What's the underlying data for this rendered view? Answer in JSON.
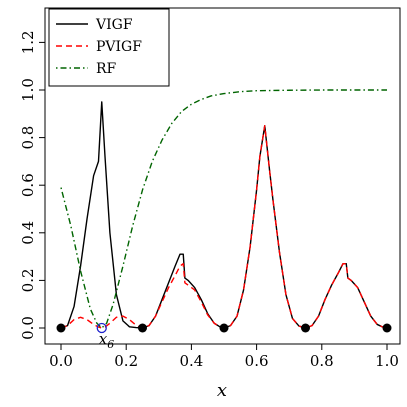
{
  "chart_data": {
    "type": "line",
    "title": "",
    "xlabel": "x",
    "ylabel": "",
    "xlim": [
      0,
      1
    ],
    "ylim": [
      0,
      1.35
    ],
    "x_ticks": [
      "0.0",
      "0.2",
      "0.4",
      "0.6",
      "0.8",
      "1.0"
    ],
    "y_ticks": [
      "0.0",
      "0.2",
      "0.4",
      "0.6",
      "0.8",
      "1.0",
      "1.2"
    ],
    "grid": false,
    "legend_position": "top-left",
    "legend": [
      {
        "label": "VIGF",
        "color": "#000000",
        "style": "solid"
      },
      {
        "label": "PVIGF",
        "color": "#ff0000",
        "style": "dashed"
      },
      {
        "label": "RF",
        "color": "#006400",
        "style": "dotdash"
      }
    ],
    "series": [
      {
        "name": "VIGF",
        "color": "#000000",
        "style": "solid",
        "x": [
          0,
          0.02,
          0.04,
          0.06,
          0.08,
          0.1,
          0.115,
          0.125,
          0.135,
          0.15,
          0.17,
          0.19,
          0.21,
          0.23,
          0.25,
          0.27,
          0.29,
          0.31,
          0.33,
          0.35,
          0.365,
          0.375,
          0.38,
          0.39,
          0.41,
          0.43,
          0.45,
          0.47,
          0.49,
          0.5,
          0.52,
          0.54,
          0.56,
          0.58,
          0.6,
          0.61,
          0.625,
          0.64,
          0.65,
          0.67,
          0.69,
          0.71,
          0.73,
          0.75,
          0.77,
          0.79,
          0.81,
          0.83,
          0.85,
          0.865,
          0.875,
          0.88,
          0.89,
          0.91,
          0.93,
          0.95,
          0.97,
          0.99,
          1.0
        ],
        "y": [
          0,
          0.01,
          0.09,
          0.26,
          0.46,
          0.64,
          0.7,
          0.95,
          0.72,
          0.4,
          0.14,
          0.03,
          0.005,
          0.002,
          0,
          0.01,
          0.05,
          0.12,
          0.19,
          0.26,
          0.31,
          0.31,
          0.21,
          0.2,
          0.17,
          0.12,
          0.06,
          0.02,
          0.003,
          0,
          0.01,
          0.05,
          0.16,
          0.34,
          0.58,
          0.72,
          0.85,
          0.66,
          0.54,
          0.32,
          0.14,
          0.04,
          0.008,
          0,
          0.01,
          0.05,
          0.12,
          0.18,
          0.23,
          0.27,
          0.27,
          0.21,
          0.2,
          0.17,
          0.11,
          0.05,
          0.015,
          0.002,
          0
        ]
      },
      {
        "name": "PVIGF",
        "color": "#ff0000",
        "style": "dashed",
        "x": [
          0,
          0.02,
          0.04,
          0.06,
          0.08,
          0.1,
          0.115,
          0.125,
          0.135,
          0.15,
          0.17,
          0.19,
          0.21,
          0.23,
          0.25,
          0.27,
          0.29,
          0.31,
          0.33,
          0.35,
          0.365,
          0.375,
          0.38,
          0.39,
          0.41,
          0.43,
          0.45,
          0.47,
          0.49,
          0.5,
          0.52,
          0.54,
          0.56,
          0.58,
          0.6,
          0.61,
          0.625,
          0.64,
          0.65,
          0.67,
          0.69,
          0.71,
          0.73,
          0.75,
          0.77,
          0.79,
          0.81,
          0.83,
          0.85,
          0.865,
          0.875,
          0.88,
          0.89,
          0.91,
          0.93,
          0.95,
          0.97,
          0.99,
          1.0
        ],
        "y": [
          0,
          0.01,
          0.035,
          0.045,
          0.035,
          0.015,
          0.004,
          0,
          0.004,
          0.02,
          0.045,
          0.05,
          0.035,
          0.012,
          0,
          0.01,
          0.05,
          0.11,
          0.17,
          0.22,
          0.26,
          0.27,
          0.19,
          0.18,
          0.16,
          0.11,
          0.055,
          0.02,
          0.003,
          0,
          0.01,
          0.05,
          0.16,
          0.34,
          0.58,
          0.72,
          0.85,
          0.66,
          0.54,
          0.32,
          0.14,
          0.04,
          0.008,
          0,
          0.01,
          0.05,
          0.12,
          0.18,
          0.23,
          0.27,
          0.27,
          0.21,
          0.2,
          0.17,
          0.11,
          0.05,
          0.015,
          0.002,
          0
        ]
      },
      {
        "name": "RF",
        "color": "#006400",
        "style": "dotdash",
        "x": [
          0,
          0.03,
          0.06,
          0.09,
          0.11,
          0.125,
          0.14,
          0.16,
          0.19,
          0.22,
          0.25,
          0.28,
          0.31,
          0.34,
          0.37,
          0.4,
          0.43,
          0.46,
          0.5,
          0.55,
          0.6,
          0.7,
          0.8,
          0.9,
          1.0
        ],
        "y": [
          0.59,
          0.43,
          0.24,
          0.08,
          0.02,
          0,
          0.02,
          0.1,
          0.26,
          0.43,
          0.58,
          0.7,
          0.79,
          0.86,
          0.91,
          0.94,
          0.96,
          0.975,
          0.985,
          0.993,
          0.997,
          0.999,
          1.0,
          1.0,
          1.0
        ]
      }
    ],
    "design_points": [
      {
        "x": 0,
        "y": 0
      },
      {
        "x": 0.25,
        "y": 0
      },
      {
        "x": 0.5,
        "y": 0
      },
      {
        "x": 0.75,
        "y": 0
      },
      {
        "x": 1.0,
        "y": 0
      }
    ],
    "annotation": {
      "label": "x",
      "subscript": "6",
      "x": 0.125,
      "y": 0
    }
  }
}
